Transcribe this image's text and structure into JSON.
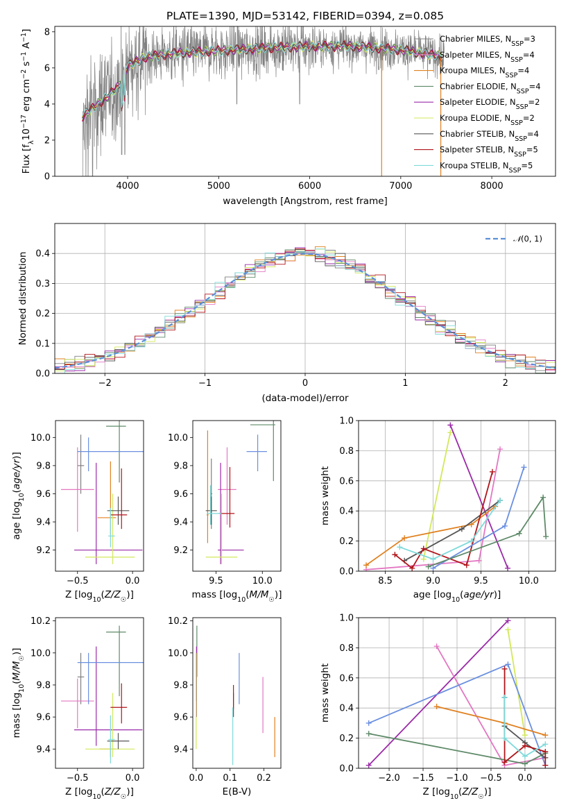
{
  "page_title": "PLATE=1390, MJD=53142, FIBERID=0394, z=0.085",
  "colors": {
    "Chabrier MILES": "#7f7f7f",
    "Salpeter MILES": "#e377c2",
    "Kroupa MILES": "#e0801f",
    "Chabrier ELODIE": "#5e8a68",
    "Salpeter ELODIE": "#9a2aa8",
    "Kroupa ELODIE": "#d2e85a",
    "Chabrier STELIB": "#555555",
    "Salpeter STELIB": "#b0141a",
    "Kroupa STELIB": "#7fdada",
    "extra1": "#6a8fe0",
    "normal": "#5b8fd8"
  },
  "chart_data": [
    {
      "id": "spectrum",
      "type": "line",
      "title": "PLATE=1390, MJD=53142, FIBERID=0394, z=0.085",
      "xlabel": "wavelength [Angstrom, rest frame]",
      "ylabel": "Flux [f_λ 10^-17 erg cm^-2 s^-1 A^-1]",
      "xlim": [
        3200,
        8700
      ],
      "ylim": [
        0,
        8.3
      ],
      "xticks": [
        "4000",
        "5000",
        "6000",
        "7000",
        "8000"
      ],
      "yticks": [
        "0",
        "2",
        "4",
        "6",
        "8"
      ],
      "legend_position": "right",
      "legend": [
        "Chabrier MILES, N_SSP=3",
        "Salpeter MILES, N_SSP=4",
        "Kroupa MILES, N_SSP=4",
        "Chabrier ELODIE, N_SSP=4",
        "Salpeter ELODIE, N_SSP=2",
        "Kroupa ELODIE, N_SSP=2",
        "Chabrier STELIB, N_SSP=4",
        "Salpeter STELIB, N_SSP=5",
        "Kroupa STELIB, N_SSP=5"
      ],
      "model_continuum": {
        "x": [
          3500,
          3600,
          3700,
          3800,
          3900,
          4000,
          4200,
          4500,
          4800,
          5000,
          5500,
          6000,
          6500,
          7000,
          7500
        ],
        "y": [
          3.3,
          3.7,
          4.1,
          4.5,
          5.0,
          6.1,
          6.6,
          6.8,
          6.9,
          6.95,
          7.1,
          7.2,
          7.2,
          7.0,
          6.6
        ]
      }
    },
    {
      "id": "residuals",
      "type": "histogram",
      "xlabel": "(data-model)/error",
      "ylabel": "Normed distribution",
      "xlim": [
        -2.5,
        2.5
      ],
      "ylim": [
        0,
        0.5
      ],
      "xticks": [
        "−2",
        "−1",
        "0",
        "1",
        "2"
      ],
      "yticks": [
        "0.0",
        "0.1",
        "0.2",
        "0.3",
        "0.4"
      ],
      "grid": true,
      "legend": [
        "N(0, 1)"
      ],
      "legend_position": "top-right",
      "bin_width": 0.1
    },
    {
      "id": "age_vs_Z",
      "type": "errorbar",
      "xlabel": "Z [log10(Z/Z☉)]",
      "ylabel": "age [log10(age/yr)]",
      "xlim": [
        -0.7,
        0.1
      ],
      "ylim": [
        9.05,
        10.12
      ],
      "xticks": [
        "−0.5",
        "0.0"
      ],
      "yticks": [
        "9.2",
        "9.4",
        "9.6",
        "9.8",
        "10.0"
      ],
      "points": [
        {
          "c": "Chabrier MILES",
          "x": -0.47,
          "xe": [
            0.03,
            0.03
          ],
          "y": 9.8,
          "ye": [
            0.2,
            0.22
          ]
        },
        {
          "c": "Salpeter MILES",
          "x": -0.5,
          "xe": [
            0.15,
            0.15
          ],
          "y": 9.63,
          "ye": [
            0.3,
            0.3
          ]
        },
        {
          "c": "Kroupa MILES",
          "x": -0.2,
          "xe": [
            0.12,
            0.05
          ],
          "y": 9.43,
          "ye": [
            0.12,
            0.4
          ]
        },
        {
          "c": "Chabrier ELODIE",
          "x": -0.12,
          "xe": [
            0.12,
            0.06
          ],
          "y": 10.08,
          "ye": [
            0.4,
            0.04
          ]
        },
        {
          "c": "Salpeter ELODIE",
          "x": -0.33,
          "xe": [
            0.2,
            0.42
          ],
          "y": 9.2,
          "ye": [
            0.1,
            0.62
          ]
        },
        {
          "c": "Kroupa ELODIE",
          "x": -0.18,
          "xe": [
            0.25,
            0.2
          ],
          "y": 9.15,
          "ye": [
            0.05,
            0.45
          ]
        },
        {
          "c": "Chabrier STELIB",
          "x": -0.13,
          "xe": [
            0.1,
            0.1
          ],
          "y": 9.48,
          "ye": [
            0.1,
            0.1
          ]
        },
        {
          "c": "Salpeter STELIB",
          "x": -0.1,
          "xe": [
            0.1,
            0.05
          ],
          "y": 9.45,
          "ye": [
            0.1,
            0.33
          ]
        },
        {
          "c": "Kroupa STELIB",
          "x": -0.2,
          "xe": [
            0.02,
            0.04
          ],
          "y": 9.3,
          "ye": [
            0.08,
            0.2
          ]
        },
        {
          "c": "extra1",
          "x": -0.4,
          "xe": [
            0.1,
            0.5
          ],
          "y": 9.9,
          "ye": [
            0.14,
            0.1
          ]
        }
      ]
    },
    {
      "id": "age_vs_mass",
      "type": "errorbar",
      "xlabel": "mass [log10(M/M☉)]",
      "ylabel": "",
      "xlim": [
        9.25,
        10.2
      ],
      "ylim": [
        9.05,
        10.12
      ],
      "xticks": [
        "9.5",
        "10.0"
      ],
      "yticks": [
        "9.2",
        "9.4",
        "9.6",
        "9.8",
        "10.0"
      ],
      "points": [
        {
          "c": "Chabrier MILES",
          "x": 9.45,
          "xe": [
            0.01,
            0.01
          ],
          "y": 9.6,
          "ye": [
            0.25,
            0.25
          ]
        },
        {
          "c": "Salpeter MILES",
          "x": 9.62,
          "xe": [
            0.1,
            0.1
          ],
          "y": 9.63,
          "ye": [
            0.25,
            0.3
          ]
        },
        {
          "c": "Kroupa MILES",
          "x": 9.41,
          "xe": [
            0.01,
            0.01
          ],
          "y": 9.45,
          "ye": [
            0.2,
            0.6
          ]
        },
        {
          "c": "Chabrier ELODIE",
          "x": 10.12,
          "xe": [
            0.25,
            0.02
          ],
          "y": 10.09,
          "ye": [
            0.4,
            0.04
          ]
        },
        {
          "c": "Salpeter ELODIE",
          "x": 9.55,
          "xe": [
            0.03,
            0.25
          ],
          "y": 9.2,
          "ye": [
            0.1,
            0.62
          ]
        },
        {
          "c": "Kroupa ELODIE",
          "x": 9.56,
          "xe": [
            0.17,
            0.17
          ],
          "y": 9.15,
          "ye": [
            0.05,
            0.45
          ]
        },
        {
          "c": "Chabrier STELIB",
          "x": 9.45,
          "xe": [
            0.06,
            0.06
          ],
          "y": 9.48,
          "ye": [
            0.1,
            0.1
          ]
        },
        {
          "c": "Salpeter STELIB",
          "x": 9.65,
          "xe": [
            0.12,
            0.05
          ],
          "y": 9.46,
          "ye": [
            0.1,
            0.33
          ]
        },
        {
          "c": "Kroupa STELIB",
          "x": 9.44,
          "xe": [
            0.04,
            0.12
          ],
          "y": 9.46,
          "ye": [
            0.08,
            0.2
          ]
        },
        {
          "c": "extra1",
          "x": 9.95,
          "xe": [
            0.12,
            0.1
          ],
          "y": 9.9,
          "ye": [
            0.14,
            0.12
          ]
        }
      ]
    },
    {
      "id": "weight_vs_age",
      "type": "line",
      "xlabel": "age [log10(age/yr)]",
      "ylabel": "mass weight",
      "xlim": [
        8.22,
        10.28
      ],
      "ylim": [
        0,
        1.0
      ],
      "xticks": [
        "8.5",
        "9.0",
        "9.5",
        "10.0"
      ],
      "yticks": [
        "0.0",
        "0.2",
        "0.4",
        "0.6",
        "0.8",
        "1.0"
      ],
      "grid": true,
      "series": [
        {
          "c": "Kroupa ELODIE",
          "x": [
            9.18,
            8.9
          ],
          "y": [
            0.92,
            0.08
          ]
        },
        {
          "c": "Salpeter ELODIE",
          "x": [
            9.18,
            9.78
          ],
          "y": [
            0.97,
            0.02
          ]
        },
        {
          "c": "Salpeter MILES",
          "x": [
            8.3,
            9.48,
            9.7
          ],
          "y": [
            0.01,
            0.07,
            0.81
          ]
        },
        {
          "c": "Kroupa MILES",
          "x": [
            8.3,
            8.7,
            9.4,
            9.65
          ],
          "y": [
            0.04,
            0.22,
            0.31,
            0.43
          ]
        },
        {
          "c": "Chabrier STELIB",
          "x": [
            8.7,
            9.3,
            9.7
          ],
          "y": [
            0.07,
            0.28,
            0.47
          ]
        },
        {
          "c": "Salpeter STELIB",
          "x": [
            8.6,
            8.78,
            8.9,
            9.35,
            9.62
          ],
          "y": [
            0.11,
            0.02,
            0.15,
            0.04,
            0.66
          ]
        },
        {
          "c": "Kroupa STELIB",
          "x": [
            8.65,
            9.0,
            9.4,
            9.7
          ],
          "y": [
            0.16,
            0.08,
            0.2,
            0.47
          ]
        },
        {
          "c": "extra1",
          "x": [
            9.0,
            9.75,
            9.95
          ],
          "y": [
            0.02,
            0.3,
            0.69
          ]
        },
        {
          "c": "Chabrier ELODIE",
          "x": [
            8.95,
            9.9,
            10.15,
            10.18
          ],
          "y": [
            0.03,
            0.25,
            0.49,
            0.23
          ]
        }
      ]
    },
    {
      "id": "mass_vs_Z",
      "type": "errorbar",
      "xlabel": "Z [log10(Z/Z☉)]",
      "ylabel": "mass [log10(M/M☉)]",
      "xlim": [
        -0.7,
        0.1
      ],
      "ylim": [
        9.28,
        10.22
      ],
      "xticks": [
        "−0.5",
        "0.0"
      ],
      "yticks": [
        "9.4",
        "9.6",
        "9.8",
        "10.0",
        "10.2"
      ],
      "points": [
        {
          "c": "Chabrier MILES",
          "x": -0.47,
          "xe": [
            0.03,
            0.03
          ],
          "y": 9.85,
          "ye": [
            0.17,
            0.15
          ]
        },
        {
          "c": "Salpeter MILES",
          "x": -0.5,
          "xe": [
            0.15,
            0.15
          ],
          "y": 9.7,
          "ye": [
            0.17,
            0.14
          ]
        },
        {
          "c": "Kroupa MILES",
          "x": -0.2,
          "xe": [
            0.1,
            0.05
          ],
          "y": 9.4,
          "ye": [
            0.05,
            0.05
          ]
        },
        {
          "c": "Chabrier ELODIE",
          "x": -0.12,
          "xe": [
            0.12,
            0.06
          ],
          "y": 10.13,
          "ye": [
            0.4,
            0.04
          ]
        },
        {
          "c": "Salpeter ELODIE",
          "x": -0.33,
          "xe": [
            0.2,
            0.42
          ],
          "y": 9.52,
          "ye": [
            0.1,
            0.52
          ]
        },
        {
          "c": "Kroupa ELODIE",
          "x": -0.18,
          "xe": [
            0.25,
            0.2
          ],
          "y": 9.4,
          "ye": [
            0.05,
            0.35
          ]
        },
        {
          "c": "Chabrier STELIB",
          "x": -0.13,
          "xe": [
            0.1,
            0.1
          ],
          "y": 9.45,
          "ye": [
            0.05,
            0.05
          ]
        },
        {
          "c": "Salpeter STELIB",
          "x": -0.1,
          "xe": [
            0.1,
            0.05
          ],
          "y": 9.66,
          "ye": [
            0.1,
            0.15
          ]
        },
        {
          "c": "Kroupa STELIB",
          "x": -0.2,
          "xe": [
            0.02,
            0.04
          ],
          "y": 9.46,
          "ye": [
            0.15,
            0.15
          ]
        },
        {
          "c": "extra1",
          "x": -0.4,
          "xe": [
            0.1,
            0.5
          ],
          "y": 9.94,
          "ye": [
            0.26,
            0.06
          ]
        }
      ]
    },
    {
      "id": "mass_vs_EBV",
      "type": "errorbar",
      "xlabel": "E(B-V)",
      "ylabel": "",
      "xlim": [
        -0.01,
        0.25
      ],
      "ylim": [
        9.28,
        10.22
      ],
      "xticks": [
        "0.0",
        "0.1",
        "0.2"
      ],
      "yticks": [
        "9.4",
        "9.6",
        "9.8",
        "10.0",
        "10.2"
      ],
      "points": [
        {
          "c": "Chabrier MILES",
          "x": 0.0,
          "xe": [
            0,
            0
          ],
          "y": 9.8,
          "ye": [
            0.1,
            0.2
          ]
        },
        {
          "c": "Salpeter MILES",
          "x": 0.197,
          "xe": [
            0,
            0
          ],
          "y": 9.65,
          "ye": [
            0.15,
            0.2
          ]
        },
        {
          "c": "Kroupa MILES",
          "x": 0.232,
          "xe": [
            0,
            0
          ],
          "y": 9.47,
          "ye": [
            0.12,
            0.13
          ]
        },
        {
          "c": "Chabrier ELODIE",
          "x": 0.002,
          "xe": [
            0,
            0
          ],
          "y": 10.0,
          "ye": [
            0.15,
            0.17
          ]
        },
        {
          "c": "Salpeter ELODIE",
          "x": 0.001,
          "xe": [
            0,
            0
          ],
          "y": 9.8,
          "ye": [
            0.2,
            0.24
          ]
        },
        {
          "c": "Kroupa ELODIE",
          "x": 0.0,
          "xe": [
            0,
            0
          ],
          "y": 9.7,
          "ye": [
            0.3,
            0.3
          ]
        },
        {
          "c": "Chabrier STELIB",
          "x": 0.11,
          "xe": [
            0,
            0
          ],
          "y": 9.7,
          "ye": [
            0.05,
            0.05
          ]
        },
        {
          "c": "Salpeter STELIB",
          "x": 0.11,
          "xe": [
            0,
            0
          ],
          "y": 9.72,
          "ye": [
            0.12,
            0.08
          ]
        },
        {
          "c": "Kroupa STELIB",
          "x": 0.108,
          "xe": [
            0,
            0
          ],
          "y": 9.45,
          "ye": [
            0.15,
            0.21
          ]
        },
        {
          "c": "extra1",
          "x": 0.127,
          "xe": [
            0,
            0
          ],
          "y": 9.84,
          "ye": [
            0.16,
            0.16
          ]
        }
      ]
    },
    {
      "id": "weight_vs_Z",
      "type": "line",
      "xlabel": "Z [log10(Z/Z☉)]",
      "ylabel": "mass weight",
      "xlim": [
        -2.45,
        0.45
      ],
      "ylim": [
        0,
        1.0
      ],
      "xticks": [
        "−2.0",
        "−1.5",
        "−1.0",
        "−0.5",
        "0.0"
      ],
      "yticks": [
        "0.0",
        "0.2",
        "0.4",
        "0.6",
        "0.8",
        "1.0"
      ],
      "grid": true,
      "series": [
        {
          "c": "Salpeter ELODIE",
          "x": [
            -2.3,
            -0.25
          ],
          "y": [
            0.02,
            0.98
          ]
        },
        {
          "c": "Kroupa ELODIE",
          "x": [
            -0.25,
            0.0
          ],
          "y": [
            0.92,
            0.22
          ]
        },
        {
          "c": "Salpeter MILES",
          "x": [
            -1.3,
            -0.3,
            0.3
          ],
          "y": [
            0.81,
            0.02,
            0.07
          ]
        },
        {
          "c": "extra1",
          "x": [
            -2.3,
            -0.25,
            0.3
          ],
          "y": [
            0.3,
            0.69,
            0.02
          ]
        },
        {
          "c": "Kroupa MILES",
          "x": [
            -1.3,
            -0.3,
            0.3
          ],
          "y": [
            0.41,
            0.3,
            0.22
          ]
        },
        {
          "c": "Chabrier ELODIE",
          "x": [
            -2.3,
            0.0,
            0.3
          ],
          "y": [
            0.23,
            0.03,
            0.1
          ]
        },
        {
          "c": "Chabrier STELIB",
          "x": [
            -0.3,
            -0.3,
            0.0,
            0.3
          ],
          "y": [
            0.47,
            0.28,
            0.17,
            0.07
          ]
        },
        {
          "c": "Salpeter STELIB",
          "x": [
            -0.3,
            -0.3,
            0.0,
            0.3,
            0.3
          ],
          "y": [
            0.66,
            0.04,
            0.15,
            0.11,
            0.02
          ]
        },
        {
          "c": "Kroupa STELIB",
          "x": [
            -0.3,
            -0.3,
            0.0,
            0.3
          ],
          "y": [
            0.47,
            0.2,
            0.08,
            0.16
          ]
        }
      ]
    }
  ]
}
